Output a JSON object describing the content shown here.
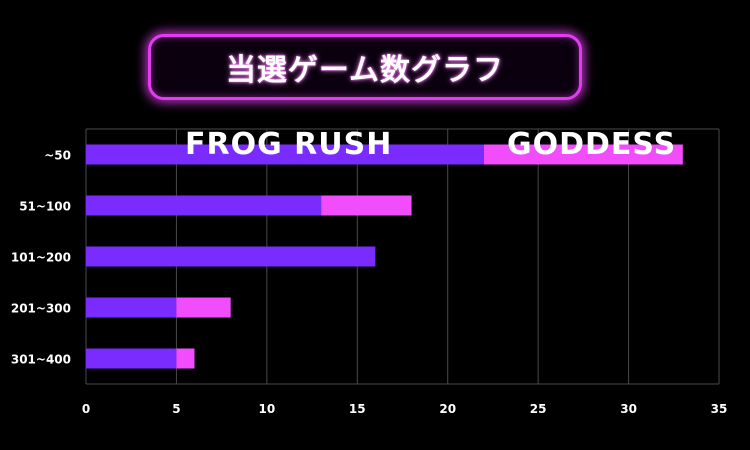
{
  "title": "当選ゲーム数グラフ",
  "colors": {
    "frog_rush": "#7a2cff",
    "goddess": "#f24dfc",
    "grid": "#4a4a4a",
    "text": "#ffffff",
    "title_border": "#e23cf0"
  },
  "chart_data": {
    "type": "bar",
    "orientation": "horizontal",
    "stacked": true,
    "categories": [
      "~50",
      "51~100",
      "101~200",
      "201~300",
      "301~400"
    ],
    "series": [
      {
        "name": "FROG RUSH",
        "values": [
          22,
          13,
          16,
          5,
          5
        ]
      },
      {
        "name": "GODDESS",
        "values": [
          11,
          5,
          0,
          3,
          1
        ]
      }
    ],
    "xlim": [
      0,
      35
    ],
    "xticks": [
      "0",
      "5",
      "10",
      "15",
      "20",
      "25",
      "30",
      "35"
    ],
    "grid": true,
    "legend": "top"
  }
}
